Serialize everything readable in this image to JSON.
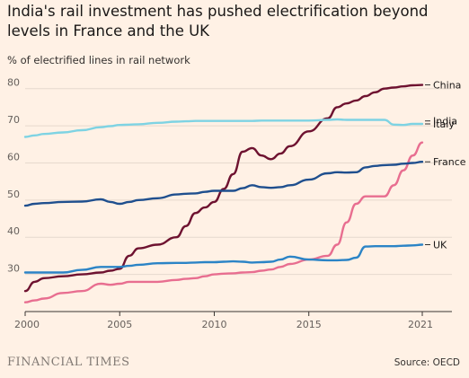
{
  "title": "India's rail investment has pushed electrification beyond levels in France and the UK",
  "subtitle": "% of electrified lines in rail network",
  "footer": {
    "brand": "FINANCIAL TIMES",
    "source": "Source: OECD"
  },
  "colors": {
    "china": "#6e1230",
    "italy": "#7ed3e3",
    "india": "#e86e90",
    "france": "#1f4f8e",
    "uk": "#2b84c6",
    "grid": "#e6d9ce",
    "axis": "#3a3532"
  },
  "chart_data": {
    "type": "line",
    "xlim": [
      2000,
      2021
    ],
    "ylim": [
      20,
      85
    ],
    "x_ticks": [
      2000,
      2005,
      2010,
      2015,
      2021
    ],
    "y_ticks": [
      30,
      40,
      50,
      60,
      70,
      80
    ],
    "grid": true,
    "x": [
      2000,
      2000.5,
      2001,
      2002,
      2003,
      2004,
      2004.5,
      2005,
      2005.5,
      2006,
      2007,
      2008,
      2008.5,
      2009,
      2009.5,
      2010,
      2010.5,
      2011,
      2011.5,
      2012,
      2012.5,
      2013,
      2013.5,
      2014,
      2015,
      2016,
      2016.5,
      2017,
      2017.5,
      2018,
      2018.5,
      2019,
      2019.5,
      2020,
      2020.5,
      2021
    ],
    "series": [
      {
        "name": "China",
        "key": "china",
        "values": [
          25.5,
          28,
          29,
          29.5,
          30,
          30.5,
          31,
          31.5,
          35,
          37,
          38,
          40,
          43,
          46.5,
          48,
          49.5,
          53,
          57,
          63,
          64,
          62,
          61,
          62.5,
          64.5,
          68.5,
          72,
          75,
          76,
          76.8,
          78,
          79,
          80,
          80.3,
          80.6,
          80.9,
          81
        ]
      },
      {
        "name": "Italy",
        "key": "italy",
        "values": [
          67,
          67.4,
          67.8,
          68.2,
          68.8,
          69.6,
          69.9,
          70.2,
          70.3,
          70.4,
          70.8,
          71.1,
          71.2,
          71.3,
          71.3,
          71.3,
          71.3,
          71.3,
          71.3,
          71.3,
          71.4,
          71.4,
          71.4,
          71.4,
          71.4,
          71.6,
          71.7,
          71.6,
          71.6,
          71.6,
          71.6,
          71.6,
          70.3,
          70.2,
          70.5,
          70.5
        ]
      },
      {
        "name": "India",
        "key": "india",
        "values": [
          22.5,
          23,
          23.5,
          25,
          25.5,
          27.5,
          27.2,
          27.5,
          28,
          28,
          28,
          28.5,
          28.8,
          29,
          29.5,
          30,
          30.2,
          30.3,
          30.5,
          30.6,
          31,
          31.3,
          32,
          32.8,
          34,
          35,
          38,
          44,
          49,
          51,
          51,
          51,
          54,
          58,
          62,
          65.5
        ]
      },
      {
        "name": "France",
        "key": "france",
        "values": [
          48.5,
          49,
          49.2,
          49.5,
          49.6,
          50.2,
          49.5,
          49,
          49.5,
          50,
          50.5,
          51.5,
          51.7,
          51.8,
          52.2,
          52.5,
          52.5,
          52.5,
          53.2,
          54,
          53.5,
          53.3,
          53.5,
          54,
          55.5,
          57.2,
          57.5,
          57.4,
          57.5,
          58.8,
          59.2,
          59.4,
          59.5,
          59.8,
          60,
          60.3
        ]
      },
      {
        "name": "UK",
        "key": "uk",
        "values": [
          30.5,
          30.5,
          30.5,
          30.5,
          31.2,
          32,
          32,
          32,
          32.3,
          32.6,
          33,
          33.1,
          33.1,
          33.2,
          33.3,
          33.3,
          33.4,
          33.5,
          33.4,
          33.2,
          33.3,
          33.4,
          34,
          34.8,
          34,
          33.8,
          33.8,
          33.9,
          34.5,
          37.5,
          37.6,
          37.6,
          37.6,
          37.7,
          37.8,
          38
        ]
      }
    ]
  }
}
